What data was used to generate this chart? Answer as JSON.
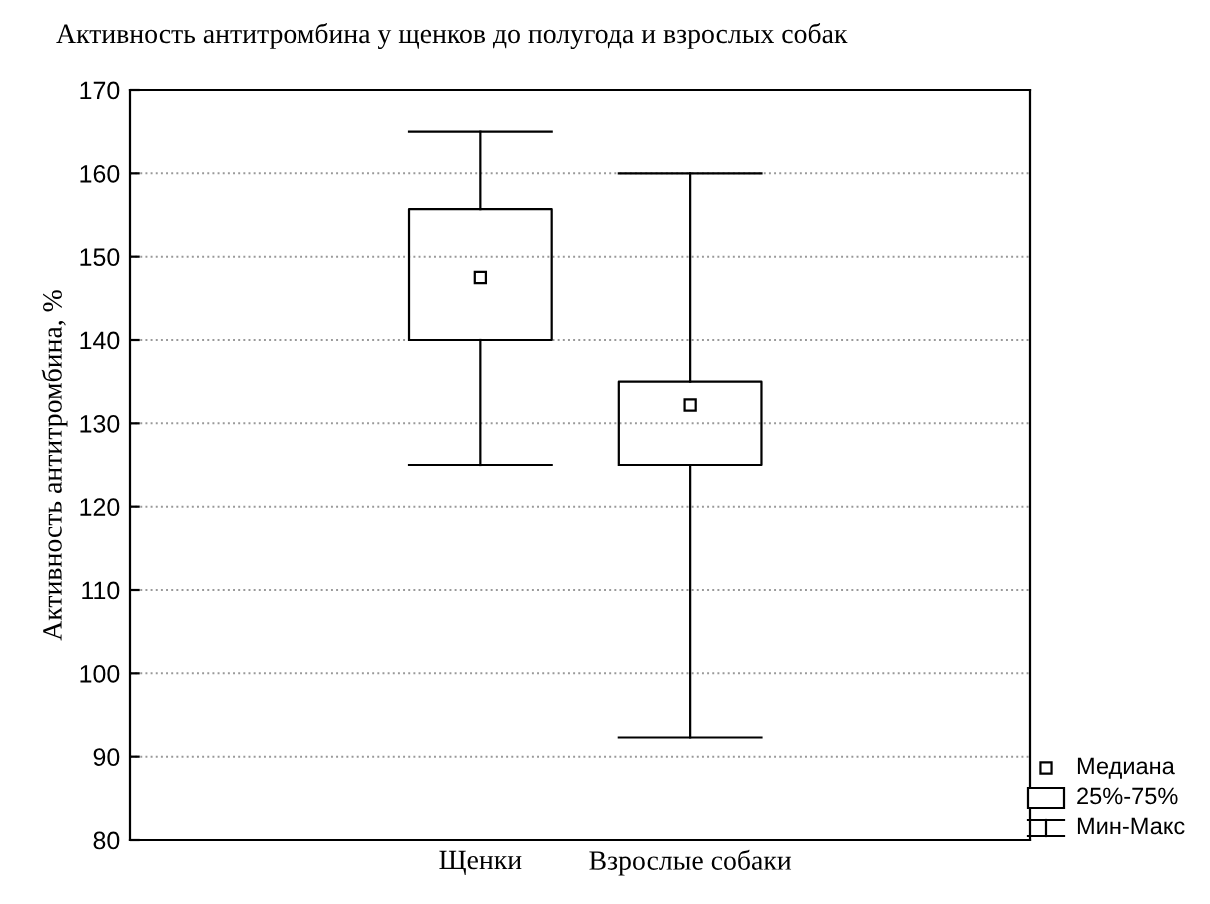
{
  "chart_data": {
    "type": "box",
    "title": "Активность антитромбина у щенков до полугода и взрослых собак",
    "ylabel": "Активность антитромбина, %",
    "categories": [
      "Щенки",
      "Взрослые собаки"
    ],
    "boxes": [
      {
        "low": 125,
        "q1": 140,
        "median": 147.5,
        "q3": 155.7,
        "high": 165
      },
      {
        "low": 92.3,
        "q1": 125,
        "median": 132.2,
        "q3": 135,
        "high": 160
      }
    ],
    "ylim": [
      80,
      170
    ],
    "yticks": [
      80,
      90,
      100,
      110,
      120,
      130,
      140,
      150,
      160,
      170
    ],
    "grid": "y",
    "annotations": [
      "Медиана",
      "25%-75%",
      "Мин-Макс"
    ],
    "marker": "square"
  }
}
